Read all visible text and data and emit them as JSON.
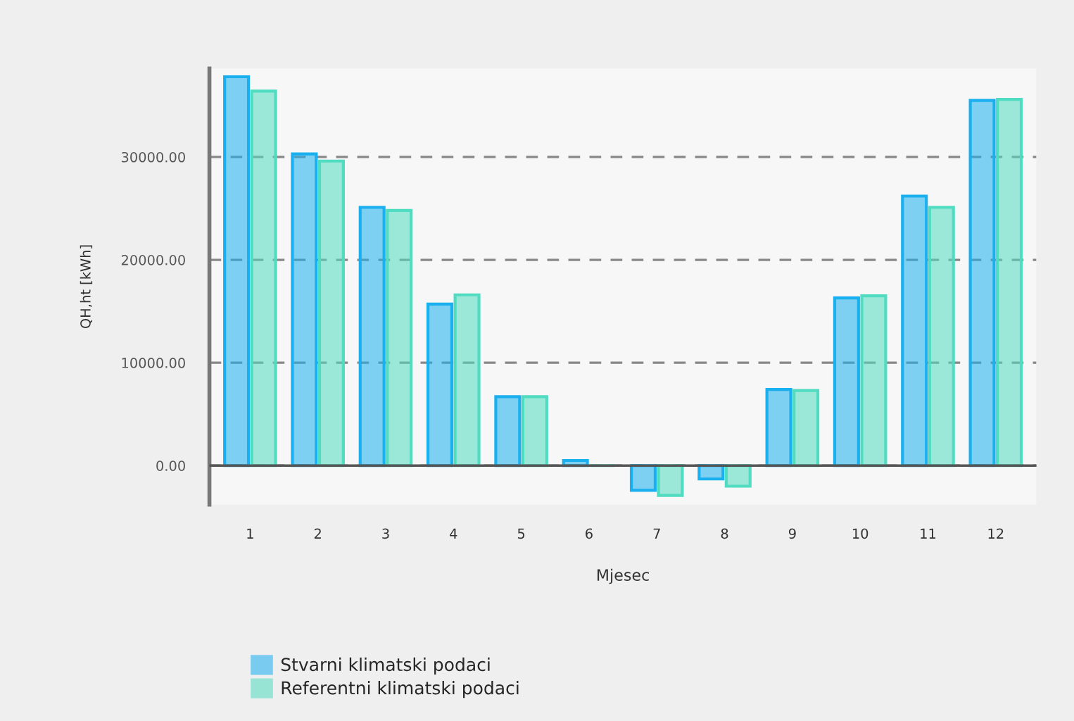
{
  "chart_data": {
    "type": "bar",
    "xlabel": "Mjesec",
    "ylabel": "QH,ht [kWh]",
    "categories": [
      "1",
      "2",
      "3",
      "4",
      "5",
      "6",
      "7",
      "8",
      "9",
      "10",
      "11",
      "12"
    ],
    "series": [
      {
        "name": "Stvarni klimatski podaci",
        "color": "#1ab0ef",
        "values": [
          37800,
          30300,
          25100,
          15700,
          6700,
          500,
          -2400,
          -1300,
          7400,
          16300,
          26200,
          35500
        ]
      },
      {
        "name": "Referentni klimatski podaci",
        "color": "#50dcc0",
        "values": [
          36400,
          29600,
          24800,
          16600,
          6700,
          0,
          -2900,
          -2000,
          7300,
          16500,
          25100,
          35600
        ]
      }
    ],
    "ylim": [
      -3800,
      38600
    ],
    "yticks": [
      {
        "value": 0,
        "label": "0.00"
      },
      {
        "value": 10000,
        "label": "10000.00"
      },
      {
        "value": 20000,
        "label": "20000.00"
      },
      {
        "value": 30000,
        "label": "30000.00"
      }
    ],
    "ref_lines": [
      {
        "axis": "y",
        "value": 0,
        "color": "#555555",
        "line_style": "solid"
      }
    ],
    "grid": "y",
    "legend": "bottom left"
  }
}
